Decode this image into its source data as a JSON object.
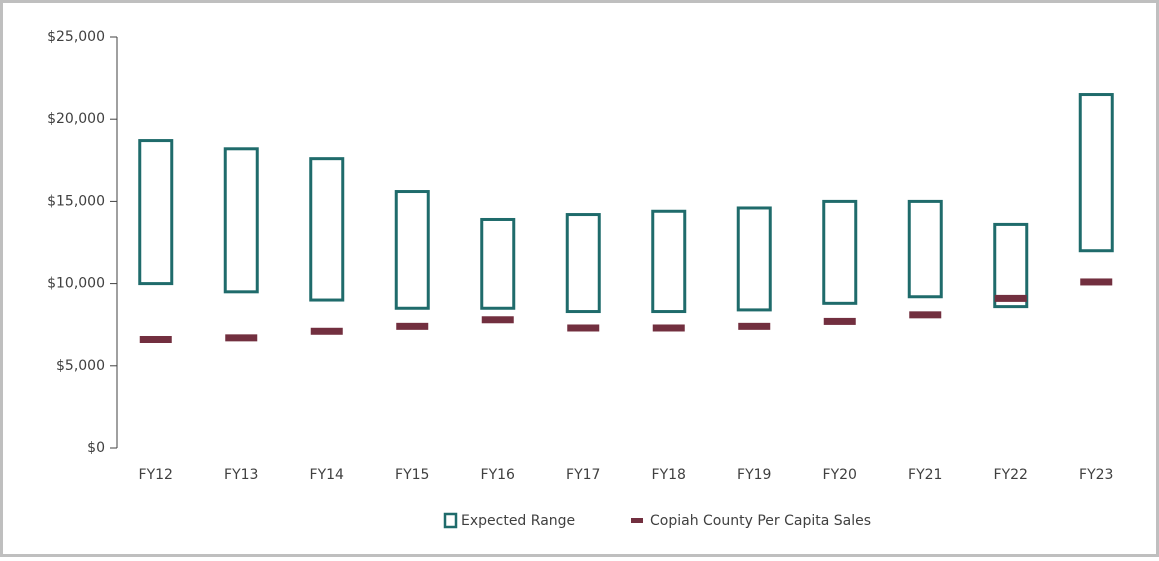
{
  "chart_data": {
    "type": "floating-bar",
    "categories": [
      "FY12",
      "FY13",
      "FY14",
      "FY15",
      "FY16",
      "FY17",
      "FY18",
      "FY19",
      "FY20",
      "FY21",
      "FY22",
      "FY23"
    ],
    "series": [
      {
        "name": "Expected Range",
        "color": "#1f6b6b",
        "low": [
          10000,
          9500,
          9000,
          8500,
          8500,
          8300,
          8300,
          8400,
          8800,
          9200,
          8600,
          12000
        ],
        "high": [
          18700,
          18200,
          17600,
          15600,
          13900,
          14200,
          14400,
          14600,
          15000,
          15000,
          13600,
          21500
        ]
      },
      {
        "name": "Copiah County Per Capita Sales",
        "color": "#722f3f",
        "values": [
          6600,
          6700,
          7100,
          7400,
          7800,
          7300,
          7300,
          7400,
          7700,
          8100,
          9100,
          10100
        ]
      }
    ],
    "ylim": [
      0,
      25000
    ],
    "yticks": [
      {
        "value": 0,
        "label": "$0"
      },
      {
        "value": 5000,
        "label": "$5,000"
      },
      {
        "value": 10000,
        "label": "$10,000"
      },
      {
        "value": 15000,
        "label": "$15,000"
      },
      {
        "value": 20000,
        "label": "$20,000"
      },
      {
        "value": 25000,
        "label": "$25,000"
      }
    ],
    "grid": false,
    "legend": "bottom"
  }
}
